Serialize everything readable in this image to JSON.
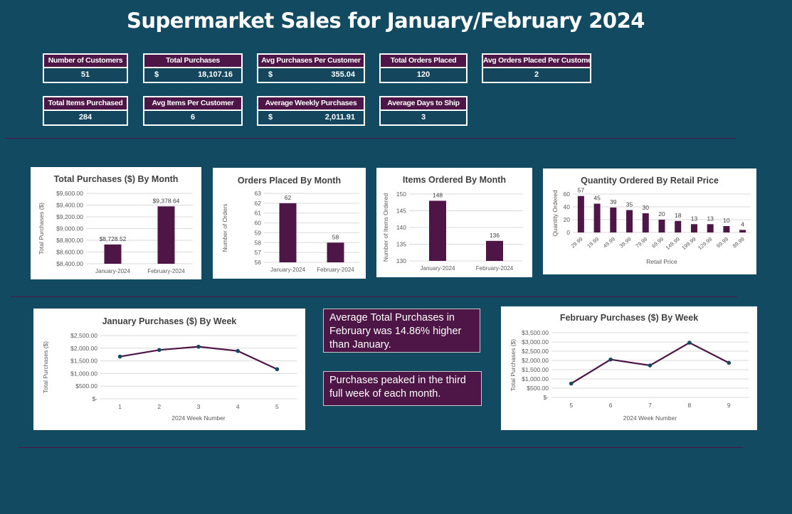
{
  "page": {
    "title": "Supermarket Sales for January/February 2024"
  },
  "kpis": [
    {
      "label": "Number of Customers",
      "value": "51"
    },
    {
      "label": "Total Purchases",
      "currency": "$",
      "value": "18,107.16"
    },
    {
      "label": "Avg  Purchases Per Customer",
      "currency": "$",
      "value": "355.04"
    },
    {
      "label": "Total Orders Placed",
      "value": "120"
    },
    {
      "label": "Avg Orders Placed Per Customer",
      "value": "2"
    },
    {
      "label": "Total Items Purchased",
      "value": "284"
    },
    {
      "label": "Avg Items Per Customer",
      "value": "6"
    },
    {
      "label": "Average Weekly Purchases",
      "currency": "$",
      "value": "2,011.91"
    },
    {
      "label": "Average Days to Ship",
      "value": "3"
    }
  ],
  "notes": {
    "note1": "Average Total Purchases in February was 14.86% higher than January.",
    "note2": "Purchases peaked in the third full week of each month."
  },
  "colors": {
    "bar": "#4d1646",
    "line": "#4d1646",
    "marker": "#124a62",
    "background": "#124a62"
  },
  "chart_data": [
    {
      "type": "bar",
      "title": "Total Purchases ($) By Month",
      "xlabel": "",
      "ylabel": "Total Purchases ($)",
      "categories": [
        "January-2024",
        "February-2024"
      ],
      "values": [
        8728.52,
        9378.64
      ],
      "data_labels": [
        "$8,728.52",
        "$9,378.64"
      ],
      "ylim": [
        8400,
        9600
      ],
      "yticks": [
        8400,
        8600,
        8800,
        9000,
        9200,
        9400,
        9600
      ],
      "ytick_labels": [
        "$8,400.00",
        "$8,600.00",
        "$8,800.00",
        "$9,000.00",
        "$9,200.00",
        "$9,400.00",
        "$9,600.00"
      ],
      "grid": true
    },
    {
      "type": "bar",
      "title": "Orders Placed By Month",
      "xlabel": "",
      "ylabel": "Number of Orders",
      "categories": [
        "January-2024",
        "February-2024"
      ],
      "values": [
        62,
        58
      ],
      "data_labels": [
        "62",
        "58"
      ],
      "ylim": [
        56,
        63
      ],
      "yticks": [
        56,
        57,
        58,
        59,
        60,
        61,
        62,
        63
      ],
      "ytick_labels": [
        "56",
        "57",
        "58",
        "59",
        "60",
        "61",
        "62",
        "63"
      ],
      "grid": true
    },
    {
      "type": "bar",
      "title": "Items Ordered By Month",
      "xlabel": "",
      "ylabel": "Number of Items Ordered",
      "categories": [
        "January-2024",
        "February-2024"
      ],
      "values": [
        148,
        136
      ],
      "data_labels": [
        "148",
        "136"
      ],
      "ylim": [
        130,
        150
      ],
      "yticks": [
        130,
        135,
        140,
        145,
        150
      ],
      "ytick_labels": [
        "130",
        "135",
        "140",
        "145",
        "150"
      ],
      "grid": true
    },
    {
      "type": "bar",
      "title": "Quantity Ordered By Retail Price",
      "xlabel": "Retail Price",
      "ylabel": "Quantity Ordered",
      "categories": [
        "29.99",
        "19.99",
        "49.99",
        "39.99",
        "79.99",
        "69.99",
        "149.99",
        "199.99",
        "129.99",
        "99.99",
        "89.99"
      ],
      "values": [
        57,
        45,
        39,
        35,
        30,
        20,
        18,
        13,
        13,
        10,
        4
      ],
      "data_labels": [
        "57",
        "45",
        "39",
        "35",
        "30",
        "20",
        "18",
        "13",
        "13",
        "10",
        "4"
      ],
      "ylim": [
        0,
        60
      ],
      "yticks": [
        0,
        20,
        40,
        60
      ],
      "ytick_labels": [
        "0",
        "20",
        "40",
        "60"
      ],
      "grid": true
    },
    {
      "type": "line",
      "title": "January Purchases ($) By Week",
      "xlabel": "2024 Week Number",
      "ylabel": "Total Purchases ($)",
      "x": [
        "1",
        "2",
        "3",
        "4",
        "5"
      ],
      "values": [
        1670,
        1930,
        2060,
        1890,
        1170
      ],
      "ylim": [
        0,
        2500
      ],
      "yticks": [
        0,
        500,
        1000,
        1500,
        2000,
        2500
      ],
      "ytick_labels": [
        "$-",
        "$500.00",
        "$1,000.00",
        "$1,500.00",
        "$2,000.00",
        "$2,500.00"
      ],
      "grid": true
    },
    {
      "type": "line",
      "title": "February Purchases ($) By Week",
      "xlabel": "2024 Week Number",
      "ylabel": "Total Purchases ($)",
      "x": [
        "5",
        "6",
        "7",
        "8",
        "9"
      ],
      "values": [
        750,
        2050,
        1730,
        2960,
        1870
      ],
      "ylim": [
        0,
        3500
      ],
      "yticks": [
        0,
        500,
        1000,
        1500,
        2000,
        2500,
        3000,
        3500
      ],
      "ytick_labels": [
        "$-",
        "$500.00",
        "$1,000.00",
        "$1,500.00",
        "$2,000.00",
        "$2,500.00",
        "$3,000.00",
        "$3,500.00"
      ],
      "grid": true
    }
  ]
}
